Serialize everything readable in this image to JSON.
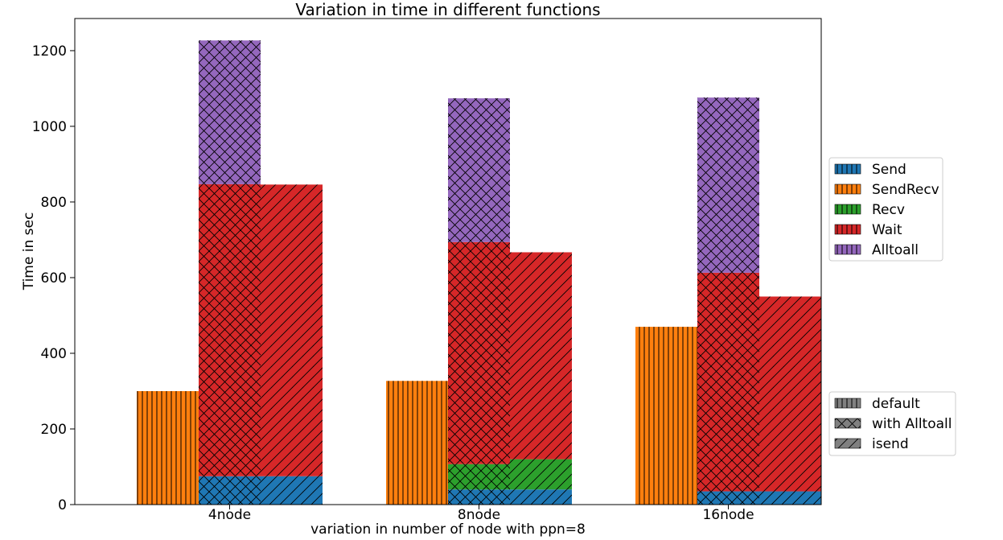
{
  "chart_data": {
    "type": "bar",
    "title": "Variation in time in different functions",
    "xlabel": "variation in number of node with ppn=8",
    "ylabel": "Time in sec",
    "categories": [
      "4node",
      "8node",
      "16node"
    ],
    "ylim": [
      0,
      1285
    ],
    "yticks": [
      0,
      200,
      400,
      600,
      800,
      1000,
      1200
    ],
    "grid": false,
    "variants": [
      {
        "name": "default",
        "hatch": "vertical"
      },
      {
        "name": "with Alltoall",
        "hatch": "cross"
      },
      {
        "name": "isend",
        "hatch": "diagonal"
      }
    ],
    "series": [
      {
        "name": "Send",
        "color": "#1f77b4",
        "values": {
          "default": [
            0,
            0,
            0
          ],
          "with Alltoall": [
            75,
            40,
            35
          ],
          "isend": [
            75,
            40,
            35
          ]
        }
      },
      {
        "name": "SendRecv",
        "color": "#ff7f0e",
        "values": {
          "default": [
            300,
            327,
            470
          ],
          "with Alltoall": [
            0,
            0,
            0
          ],
          "isend": [
            0,
            0,
            0
          ]
        }
      },
      {
        "name": "Recv",
        "color": "#2ca02c",
        "values": {
          "default": [
            0,
            0,
            0
          ],
          "with Alltoall": [
            0,
            67,
            0
          ],
          "isend": [
            0,
            80,
            0
          ]
        }
      },
      {
        "name": "Wait",
        "color": "#d62728",
        "values": {
          "default": [
            0,
            0,
            0
          ],
          "with Alltoall": [
            772,
            587,
            578
          ],
          "isend": [
            771,
            547,
            515
          ]
        }
      },
      {
        "name": "Alltoall",
        "color": "#9467bd",
        "values": {
          "default": [
            0,
            0,
            0
          ],
          "with Alltoall": [
            380,
            380,
            463
          ],
          "isend": [
            0,
            0,
            0
          ]
        }
      }
    ],
    "legend_series_placement": "right",
    "legend_variants_placement": "lower-right"
  }
}
